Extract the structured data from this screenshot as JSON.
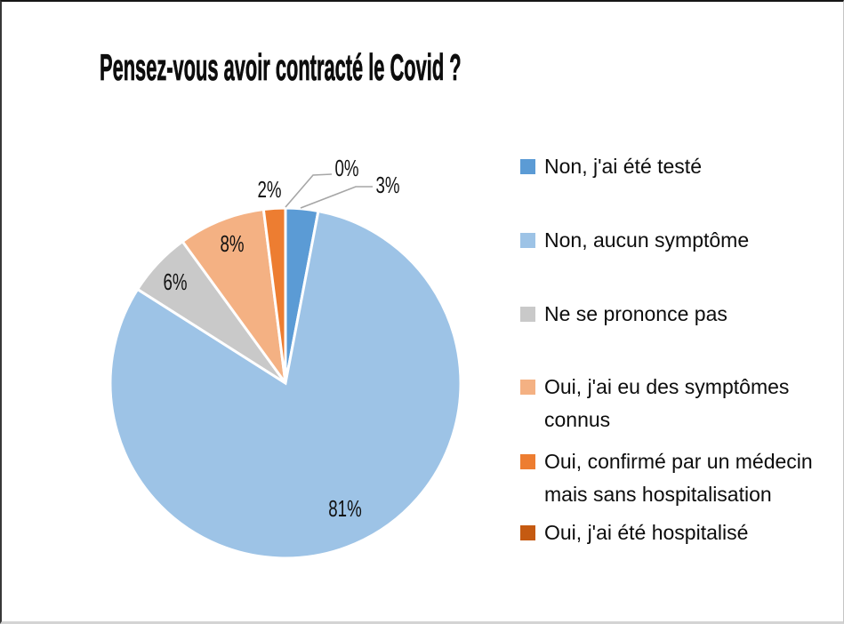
{
  "title": "Pensez-vous avoir contracté le Covid ?",
  "chart_data": {
    "type": "pie",
    "title": "Pensez-vous avoir contracté le Covid ?",
    "unit": "%",
    "legend_position": "right",
    "start_angle_deg": 0,
    "direction": "clockwise",
    "leader_line_color": "#A6A6A6",
    "slices": [
      {
        "label": "Non, j'ai été testé",
        "value": 3,
        "color": "#5B9BD5",
        "data_label": "3%",
        "legend_lines": [
          "Non, j'ai été testé"
        ]
      },
      {
        "label": "Non, aucun symptôme",
        "value": 81,
        "color": "#9DC3E6",
        "data_label": "81%",
        "legend_lines": [
          "Non, aucun symptôme"
        ]
      },
      {
        "label": "Ne se prononce pas",
        "value": 6,
        "color": "#C9C9C9",
        "data_label": "6%",
        "legend_lines": [
          "Ne se prononce pas"
        ]
      },
      {
        "label": "Oui, j'ai eu des symptômes connus",
        "value": 8,
        "color": "#F4B183",
        "data_label": "8%",
        "legend_lines": [
          "Oui, j'ai eu des symptômes",
          "connus"
        ]
      },
      {
        "label": "Oui, confirmé par un médecin mais sans hospitalisation",
        "value": 2,
        "color": "#ED7D31",
        "data_label": "2%",
        "legend_lines": [
          "Oui, confirmé par un médecin",
          "mais sans hospitalisation"
        ]
      },
      {
        "label": "Oui, j'ai été hospitalisé",
        "value": 0,
        "color": "#C55A11",
        "data_label": "0%",
        "legend_lines": [
          "Oui, j'ai été hospitalisé"
        ]
      }
    ]
  }
}
